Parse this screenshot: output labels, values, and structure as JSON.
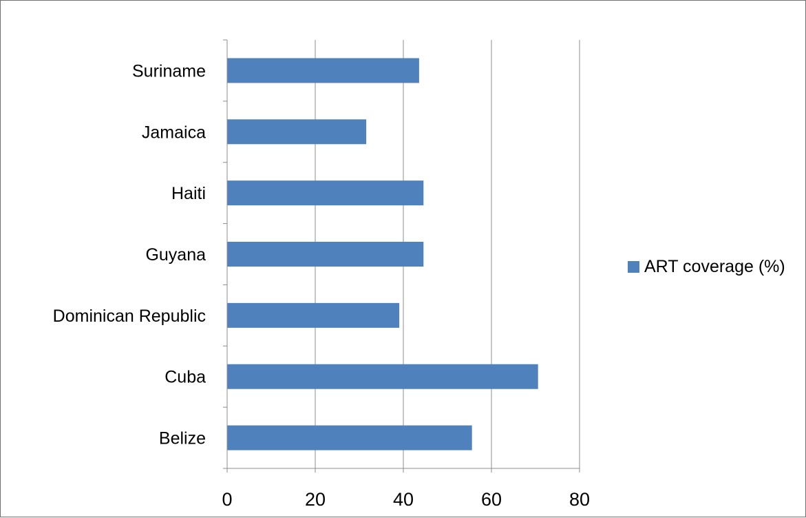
{
  "chart_data": {
    "type": "bar",
    "orientation": "horizontal",
    "title": "",
    "xlabel": "",
    "ylabel": "",
    "categories": [
      "Suriname",
      "Jamaica",
      "Haiti",
      "Guyana",
      "Dominican Republic",
      "Cuba",
      "Belize"
    ],
    "series": [
      {
        "name": "ART coverage (%)",
        "values": [
          43.5,
          31.5,
          44.5,
          44.5,
          39,
          70.5,
          55.5
        ],
        "color": "#4f81bd"
      }
    ],
    "xlim": [
      0,
      80
    ],
    "x_ticks": [
      "0",
      "20",
      "40",
      "60",
      "80"
    ],
    "grid": "vertical",
    "legend": "right"
  }
}
